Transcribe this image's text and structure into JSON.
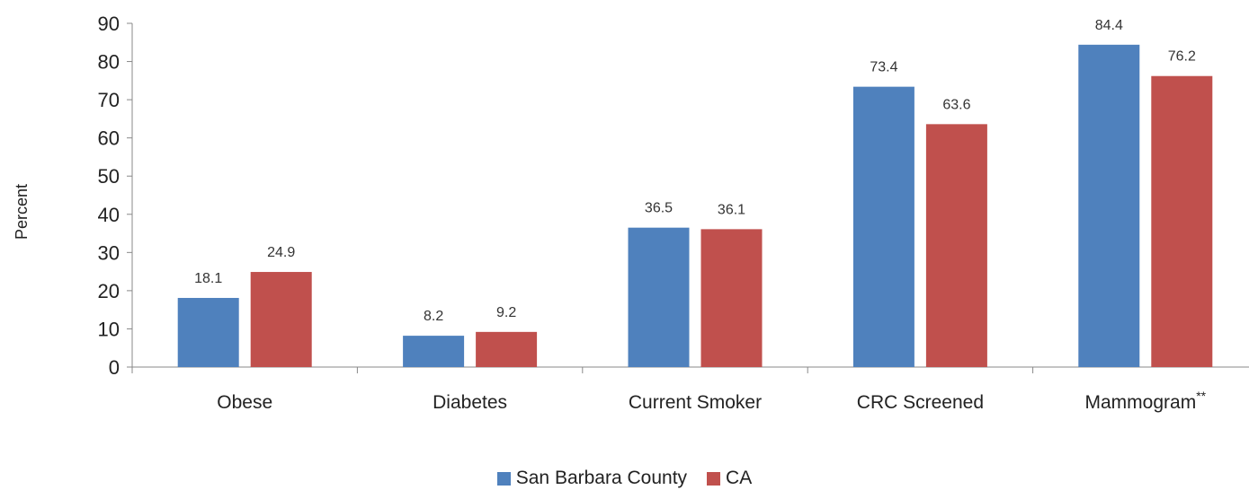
{
  "chart_data": {
    "type": "bar",
    "title": "",
    "xlabel": "",
    "ylabel": "Percent",
    "ylim": [
      0,
      90
    ],
    "yticks": [
      0,
      10,
      20,
      30,
      40,
      50,
      60,
      70,
      80,
      90
    ],
    "categories": [
      {
        "label": "Obese",
        "sup": ""
      },
      {
        "label": "Diabetes",
        "sup": ""
      },
      {
        "label": "Current Smoker",
        "sup": ""
      },
      {
        "label": "CRC Screened",
        "sup": ""
      },
      {
        "label": "Mammogram",
        "sup": "**"
      }
    ],
    "series": [
      {
        "name": "San Barbara County",
        "color": "#4f81bd",
        "values": [
          18.1,
          8.2,
          36.5,
          73.4,
          84.4
        ]
      },
      {
        "name": "CA",
        "color": "#c0504d",
        "values": [
          24.9,
          9.2,
          36.1,
          63.6,
          76.2
        ]
      }
    ],
    "data_labels": true,
    "grid": false,
    "legend_position": "bottom-center"
  }
}
